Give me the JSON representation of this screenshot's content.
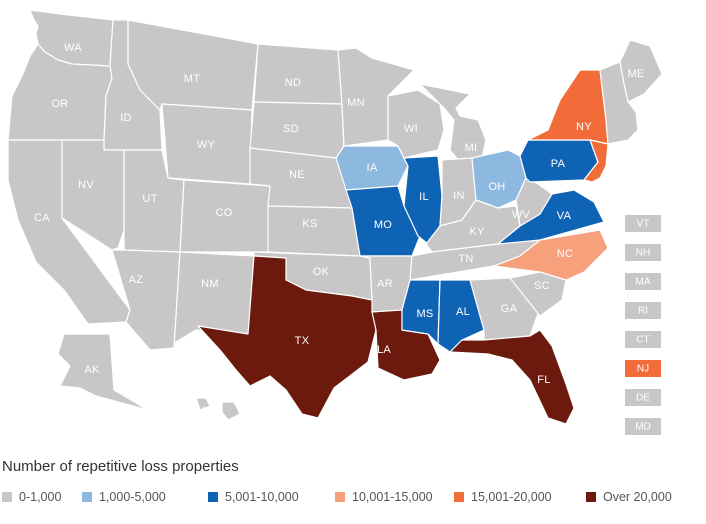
{
  "legend": {
    "title": "Number of repetitive loss properties",
    "items": [
      {
        "label": "0-1,000",
        "color": "#c8c6c6"
      },
      {
        "label": "1,000-5,000",
        "color": "#8db8e0"
      },
      {
        "label": "5,001-10,000",
        "color": "#0f63b5"
      },
      {
        "label": "10,001-15,000",
        "color": "#f7a07c"
      },
      {
        "label": "15,001-20,000",
        "color": "#f26c3a"
      },
      {
        "label": "Over 20,000",
        "color": "#6b1a0d"
      }
    ]
  },
  "states": [
    {
      "id": "WA",
      "label": "WA",
      "category": 0
    },
    {
      "id": "OR",
      "label": "OR",
      "category": 0
    },
    {
      "id": "CA",
      "label": "CA",
      "category": 0
    },
    {
      "id": "ID",
      "label": "ID",
      "category": 0
    },
    {
      "id": "NV",
      "label": "NV",
      "category": 0
    },
    {
      "id": "MT",
      "label": "MT",
      "category": 0
    },
    {
      "id": "WY",
      "label": "WY",
      "category": 0
    },
    {
      "id": "UT",
      "label": "UT",
      "category": 0
    },
    {
      "id": "AZ",
      "label": "AZ",
      "category": 0
    },
    {
      "id": "CO",
      "label": "CO",
      "category": 0
    },
    {
      "id": "NM",
      "label": "NM",
      "category": 0
    },
    {
      "id": "ND",
      "label": "ND",
      "category": 0
    },
    {
      "id": "SD",
      "label": "SD",
      "category": 0
    },
    {
      "id": "NE",
      "label": "NE",
      "category": 0
    },
    {
      "id": "KS",
      "label": "KS",
      "category": 0
    },
    {
      "id": "OK",
      "label": "OK",
      "category": 0
    },
    {
      "id": "TX",
      "label": "TX",
      "category": 5
    },
    {
      "id": "MN",
      "label": "MN",
      "category": 0
    },
    {
      "id": "IA",
      "label": "IA",
      "category": 1
    },
    {
      "id": "MO",
      "label": "MO",
      "category": 2
    },
    {
      "id": "AR",
      "label": "AR",
      "category": 0
    },
    {
      "id": "LA",
      "label": "LA",
      "category": 5
    },
    {
      "id": "WI",
      "label": "WI",
      "category": 0
    },
    {
      "id": "IL",
      "label": "IL",
      "category": 2
    },
    {
      "id": "MI",
      "label": "MI",
      "category": 0
    },
    {
      "id": "IN",
      "label": "IN",
      "category": 0
    },
    {
      "id": "OH",
      "label": "OH",
      "category": 1
    },
    {
      "id": "KY",
      "label": "KY",
      "category": 0
    },
    {
      "id": "TN",
      "label": "TN",
      "category": 0
    },
    {
      "id": "MS",
      "label": "MS",
      "category": 2
    },
    {
      "id": "AL",
      "label": "AL",
      "category": 2
    },
    {
      "id": "GA",
      "label": "GA",
      "category": 0
    },
    {
      "id": "FL",
      "label": "FL",
      "category": 5
    },
    {
      "id": "SC",
      "label": "SC",
      "category": 0
    },
    {
      "id": "NC",
      "label": "NC",
      "category": 3
    },
    {
      "id": "VA",
      "label": "VA",
      "category": 2
    },
    {
      "id": "WV",
      "label": "WV",
      "category": 0
    },
    {
      "id": "PA",
      "label": "PA",
      "category": 2
    },
    {
      "id": "NY",
      "label": "NY",
      "category": 4
    },
    {
      "id": "ME",
      "label": "ME",
      "category": 0
    },
    {
      "id": "AK",
      "label": "AK",
      "category": 0
    },
    {
      "id": "HI",
      "label": "HI",
      "category": 0
    }
  ],
  "small_states": [
    {
      "id": "VT",
      "label": "VT",
      "category": 0
    },
    {
      "id": "NH",
      "label": "NH",
      "category": 0
    },
    {
      "id": "MA",
      "label": "MA",
      "category": 0
    },
    {
      "id": "RI",
      "label": "RI",
      "category": 0
    },
    {
      "id": "CT",
      "label": "CT",
      "category": 0
    },
    {
      "id": "NJ",
      "label": "NJ",
      "category": 4
    },
    {
      "id": "DE",
      "label": "DE",
      "category": 0
    },
    {
      "id": "MD",
      "label": "MD",
      "category": 0
    }
  ]
}
